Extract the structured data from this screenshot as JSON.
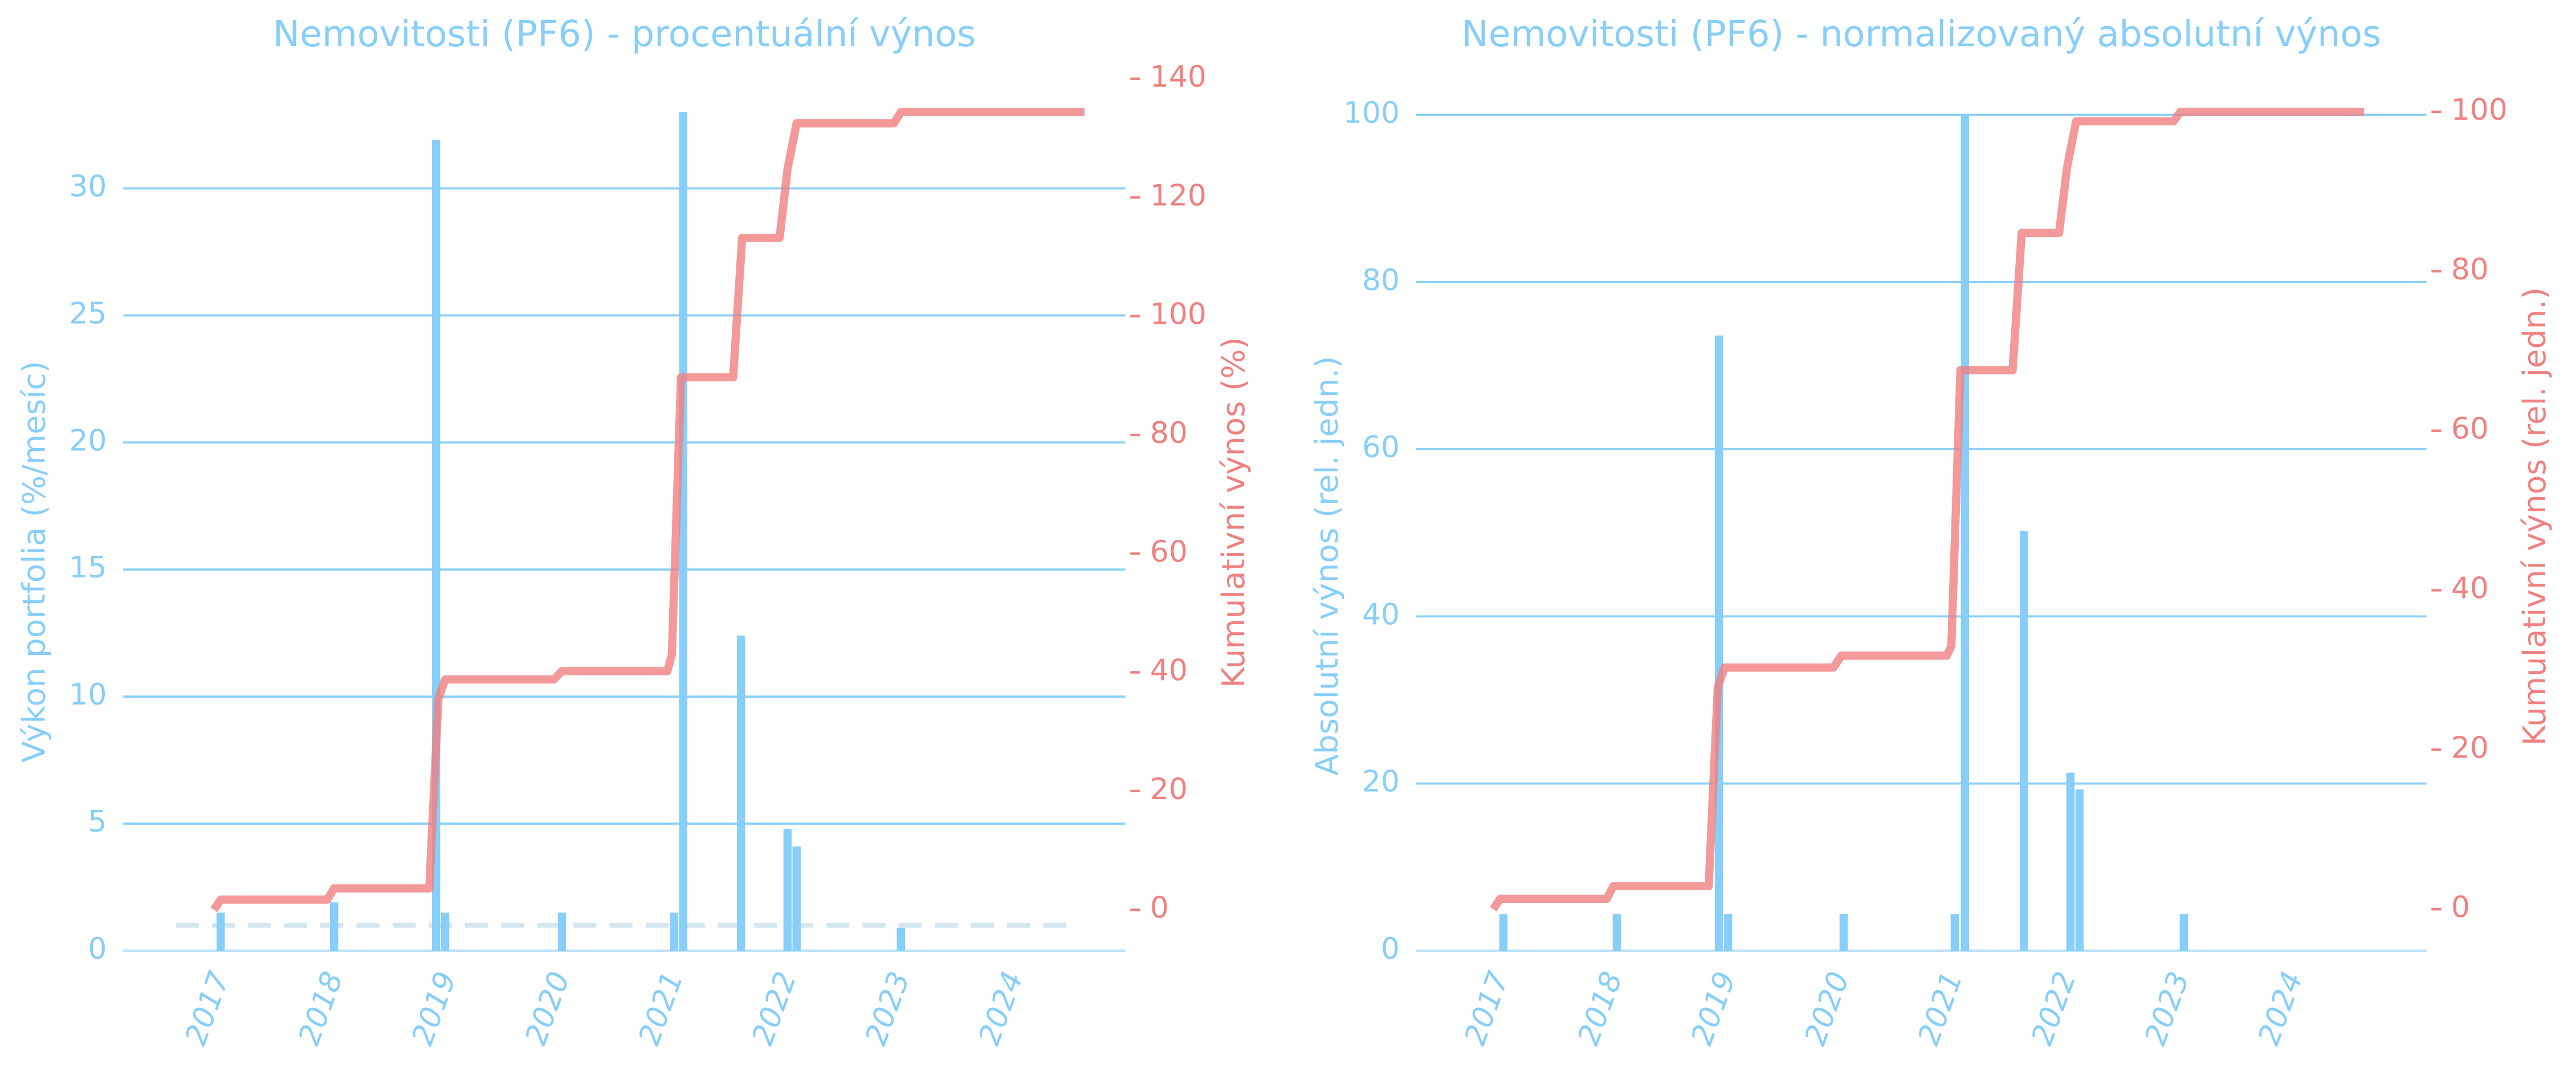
{
  "chart_data": [
    {
      "type": "combo",
      "title": "Nemovitosti (PF6) - procentuální výnos",
      "y_label": "Výkon portfolia (%/mesíc)",
      "y2_label": "Kumulativní výnos (%)",
      "xlim": [
        2016.2,
        2025.04
      ],
      "xticks": [
        2017,
        2018,
        2019,
        2020,
        2021,
        2022,
        2023,
        2024
      ],
      "ylim": [
        0,
        34.5
      ],
      "yticks": [
        0,
        5,
        10,
        15,
        20,
        25,
        30
      ],
      "y2lim": [
        -6.9,
        140.8
      ],
      "y2ticks": [
        0,
        20,
        40,
        60,
        80,
        100,
        120,
        140
      ],
      "grid": true,
      "hline": {
        "value": 1,
        "color": "#d3e6f0"
      },
      "series": [
        {
          "type": "bar",
          "color": "#87cefa",
          "x": [
            2017.06,
            2018.06,
            2018.96,
            2019.04,
            2020.07,
            2021.06,
            2021.14,
            2021.65,
            2022.06,
            2022.14,
            2023.06
          ],
          "values": [
            1.5,
            1.9,
            31.9,
            1.5,
            1.5,
            1.5,
            33,
            12.4,
            4.8,
            4.1,
            0.9
          ]
        },
        {
          "type": "line",
          "axis": "y2",
          "color": "#f08080",
          "x": [
            2017.0,
            2017.06,
            2018.0,
            2018.06,
            2018.9,
            2018.98,
            2019.04,
            2020.0,
            2020.07,
            2021.0,
            2021.04,
            2021.12,
            2021.58,
            2021.66,
            2021.99,
            2022.06,
            2022.14,
            2023.0,
            2023.06,
            2024.68
          ],
          "values": [
            0,
            1.7,
            1.7,
            3.6,
            3.6,
            35.5,
            38.8,
            38.8,
            40.2,
            40.2,
            43,
            89.7,
            89.7,
            113.2,
            113.2,
            124.8,
            132.5,
            132.5,
            134.4,
            134.4
          ]
        }
      ]
    },
    {
      "type": "combo",
      "title": "Nemovitosti (PF6) - normalizovaný absolutní výnos",
      "y_label": "Absolutní výnos (rel. jedn.)",
      "y2_label": "Kumulativní výnos (rel. jedn.)",
      "xlim": [
        2016.32,
        2025.23
      ],
      "xticks": [
        2017,
        2018,
        2019,
        2020,
        2021,
        2022,
        2023,
        2024
      ],
      "ylim": [
        0,
        103.9
      ],
      "yticks": [
        0,
        20,
        40,
        60,
        80,
        100
      ],
      "y2lim": [
        -5.2,
        103.7
      ],
      "y2ticks": [
        0,
        20,
        40,
        60,
        80,
        100
      ],
      "grid": true,
      "series": [
        {
          "type": "bar",
          "color": "#87cefa",
          "x": [
            2017.09,
            2018.09,
            2018.99,
            2019.07,
            2020.09,
            2021.07,
            2021.16,
            2021.68,
            2022.09,
            2022.17,
            2023.09
          ],
          "values": [
            4.4,
            4.4,
            73.6,
            4.4,
            4.4,
            4.4,
            100,
            50.2,
            21.3,
            19.3,
            4.4
          ]
        },
        {
          "type": "line",
          "axis": "y2",
          "color": "#f08080",
          "x": [
            2017.0,
            2017.06,
            2018.0,
            2018.06,
            2018.9,
            2018.98,
            2019.04,
            2020.0,
            2020.07,
            2021.0,
            2021.04,
            2021.12,
            2021.58,
            2021.66,
            2021.99,
            2022.06,
            2022.14,
            2023.0,
            2023.06,
            2024.68
          ],
          "values": [
            0,
            1.3,
            1.3,
            2.9,
            2.9,
            27.8,
            30.3,
            30.3,
            31.8,
            31.8,
            33,
            67.6,
            67.6,
            84.8,
            84.8,
            93,
            98.8,
            98.8,
            100,
            100
          ]
        }
      ]
    }
  ]
}
